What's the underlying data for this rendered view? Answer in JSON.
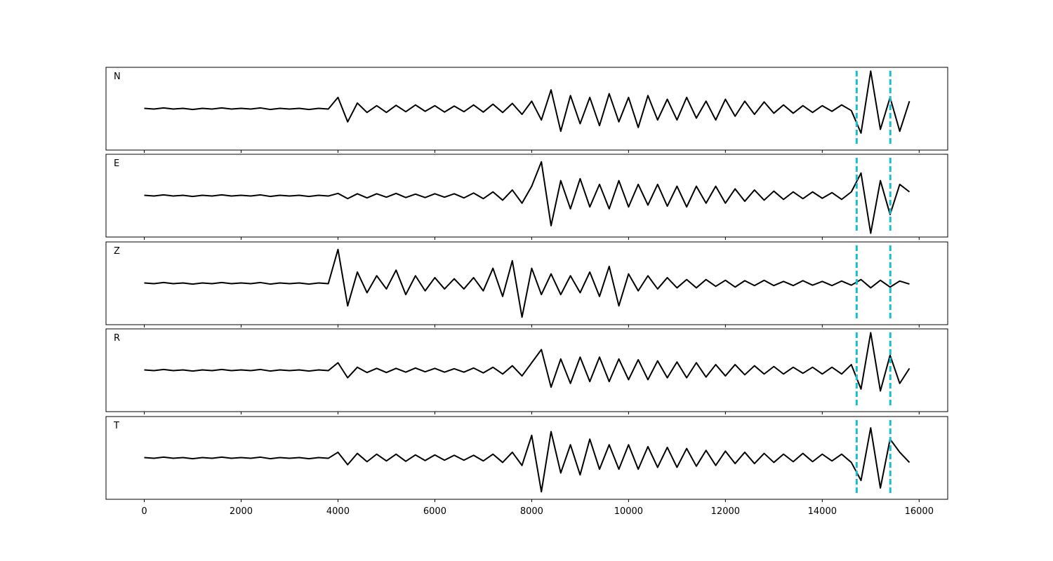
{
  "chart_data": {
    "type": "line",
    "x": [
      0,
      200,
      400,
      600,
      800,
      1000,
      1200,
      1400,
      1600,
      1800,
      2000,
      2200,
      2400,
      2600,
      2800,
      3000,
      3200,
      3400,
      3600,
      3800,
      4000,
      4200,
      4400,
      4600,
      4800,
      5000,
      5200,
      5400,
      5600,
      5800,
      6000,
      6200,
      6400,
      6600,
      6800,
      7000,
      7200,
      7400,
      7600,
      7800,
      8000,
      8200,
      8400,
      8600,
      8800,
      9000,
      9200,
      9400,
      9600,
      9800,
      10000,
      10200,
      10400,
      10600,
      10800,
      11000,
      11200,
      11400,
      11600,
      11800,
      12000,
      12200,
      12400,
      12600,
      12800,
      13000,
      13200,
      13400,
      13600,
      13800,
      14000,
      14200,
      14400,
      14600,
      14800,
      15000,
      15200,
      15400,
      15600,
      15800
    ],
    "xlim": [
      -790,
      16590
    ],
    "xticks": [
      0,
      2000,
      4000,
      6000,
      8000,
      10000,
      12000,
      14000,
      16000
    ],
    "ylim": [
      -1.1,
      1.1
    ],
    "vlines": [
      14710,
      15405
    ],
    "vline_color": "#17becf",
    "series": [
      {
        "name": "N",
        "color": "#000000",
        "values": [
          0.01,
          -0.01,
          0.02,
          -0.01,
          0.01,
          -0.02,
          0.01,
          -0.01,
          0.02,
          -0.01,
          0.01,
          -0.01,
          0.02,
          -0.02,
          0.01,
          -0.01,
          0.01,
          -0.02,
          0.01,
          -0.01,
          0.3,
          -0.35,
          0.15,
          -0.1,
          0.08,
          -0.1,
          0.09,
          -0.08,
          0.1,
          -0.07,
          0.08,
          -0.09,
          0.07,
          -0.08,
          0.1,
          -0.09,
          0.12,
          -0.1,
          0.14,
          -0.15,
          0.2,
          -0.3,
          0.5,
          -0.6,
          0.35,
          -0.4,
          0.3,
          -0.45,
          0.4,
          -0.35,
          0.3,
          -0.5,
          0.35,
          -0.3,
          0.25,
          -0.3,
          0.3,
          -0.25,
          0.2,
          -0.3,
          0.25,
          -0.2,
          0.2,
          -0.15,
          0.18,
          -0.12,
          0.1,
          -0.12,
          0.08,
          -0.1,
          0.08,
          -0.07,
          0.1,
          -0.05,
          -0.65,
          1.0,
          -0.55,
          0.3,
          -0.6,
          0.2
        ]
      },
      {
        "name": "E",
        "color": "#000000",
        "values": [
          0.01,
          -0.01,
          0.02,
          -0.01,
          0.01,
          -0.02,
          0.01,
          -0.01,
          0.02,
          -0.01,
          0.01,
          -0.01,
          0.02,
          -0.02,
          0.01,
          -0.01,
          0.01,
          -0.02,
          0.01,
          -0.01,
          0.06,
          -0.08,
          0.05,
          -0.06,
          0.05,
          -0.04,
          0.06,
          -0.05,
          0.04,
          -0.05,
          0.05,
          -0.04,
          0.05,
          -0.06,
          0.07,
          -0.08,
          0.1,
          -0.12,
          0.15,
          -0.2,
          0.25,
          0.9,
          -0.8,
          0.4,
          -0.35,
          0.45,
          -0.3,
          0.3,
          -0.35,
          0.4,
          -0.3,
          0.3,
          -0.25,
          0.3,
          -0.28,
          0.25,
          -0.3,
          0.25,
          -0.2,
          0.25,
          -0.2,
          0.18,
          -0.15,
          0.15,
          -0.12,
          0.12,
          -0.1,
          0.1,
          -0.08,
          0.1,
          -0.07,
          0.08,
          -0.1,
          0.1,
          0.6,
          -1.0,
          0.4,
          -0.5,
          0.3,
          0.1
        ]
      },
      {
        "name": "Z",
        "color": "#000000",
        "values": [
          0.01,
          -0.01,
          0.02,
          -0.01,
          0.01,
          -0.02,
          0.01,
          -0.01,
          0.02,
          -0.01,
          0.01,
          -0.01,
          0.02,
          -0.02,
          0.01,
          -0.01,
          0.01,
          -0.02,
          0.01,
          -0.01,
          0.9,
          -0.6,
          0.3,
          -0.25,
          0.2,
          -0.15,
          0.35,
          -0.3,
          0.2,
          -0.2,
          0.15,
          -0.15,
          0.12,
          -0.15,
          0.15,
          -0.2,
          0.4,
          -0.35,
          0.6,
          -0.9,
          0.4,
          -0.3,
          0.25,
          -0.3,
          0.2,
          -0.25,
          0.3,
          -0.35,
          0.45,
          -0.6,
          0.25,
          -0.2,
          0.2,
          -0.15,
          0.15,
          -0.12,
          0.1,
          -0.12,
          0.1,
          -0.08,
          0.08,
          -0.1,
          0.07,
          -0.06,
          0.08,
          -0.06,
          0.05,
          -0.06,
          0.07,
          -0.05,
          0.05,
          -0.06,
          0.06,
          -0.05,
          0.1,
          -0.12,
          0.08,
          -0.1,
          0.06,
          -0.02
        ]
      },
      {
        "name": "R",
        "color": "#000000",
        "values": [
          0.01,
          -0.01,
          0.02,
          -0.01,
          0.01,
          -0.02,
          0.01,
          -0.01,
          0.02,
          -0.01,
          0.01,
          -0.01,
          0.02,
          -0.02,
          0.01,
          -0.01,
          0.01,
          -0.02,
          0.01,
          -0.01,
          0.2,
          -0.2,
          0.08,
          -0.06,
          0.05,
          -0.06,
          0.05,
          -0.05,
          0.06,
          -0.04,
          0.05,
          -0.05,
          0.04,
          -0.05,
          0.06,
          -0.07,
          0.08,
          -0.1,
          0.12,
          -0.15,
          0.2,
          0.55,
          -0.45,
          0.3,
          -0.35,
          0.35,
          -0.3,
          0.35,
          -0.3,
          0.3,
          -0.25,
          0.28,
          -0.25,
          0.25,
          -0.2,
          0.22,
          -0.2,
          0.2,
          -0.18,
          0.15,
          -0.15,
          0.15,
          -0.12,
          0.12,
          -0.1,
          0.1,
          -0.1,
          0.08,
          -0.08,
          0.08,
          -0.1,
          0.08,
          -0.1,
          0.15,
          -0.5,
          1.0,
          -0.55,
          0.4,
          -0.35,
          0.05
        ]
      },
      {
        "name": "T",
        "color": "#000000",
        "values": [
          0.01,
          -0.01,
          0.02,
          -0.01,
          0.01,
          -0.02,
          0.01,
          -0.01,
          0.02,
          -0.01,
          0.01,
          -0.01,
          0.02,
          -0.02,
          0.01,
          -0.01,
          0.01,
          -0.02,
          0.01,
          -0.01,
          0.15,
          -0.18,
          0.12,
          -0.1,
          0.1,
          -0.08,
          0.1,
          -0.09,
          0.08,
          -0.07,
          0.08,
          -0.06,
          0.07,
          -0.06,
          0.07,
          -0.08,
          0.1,
          -0.12,
          0.15,
          -0.2,
          0.6,
          -0.9,
          0.7,
          -0.4,
          0.35,
          -0.45,
          0.5,
          -0.3,
          0.35,
          -0.3,
          0.35,
          -0.3,
          0.3,
          -0.25,
          0.28,
          -0.25,
          0.25,
          -0.22,
          0.2,
          -0.2,
          0.18,
          -0.15,
          0.15,
          -0.15,
          0.12,
          -0.12,
          0.1,
          -0.1,
          0.12,
          -0.1,
          0.1,
          -0.08,
          0.1,
          -0.12,
          -0.6,
          0.8,
          -0.8,
          0.5,
          0.15,
          -0.12
        ]
      }
    ]
  }
}
